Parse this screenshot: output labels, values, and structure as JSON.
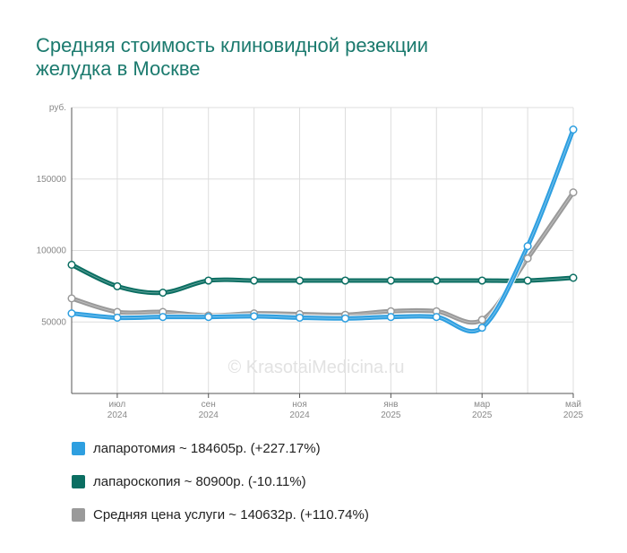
{
  "title": {
    "line1": "Средняя стоимость клиновидной резекции",
    "line2": "желудка в Москве"
  },
  "watermark": "© KrasotaiMedicina.ru",
  "chart_data": {
    "type": "line",
    "ylabel": "руб.",
    "ylim": [
      0,
      200000
    ],
    "yticks": [
      {
        "value": 50000,
        "label": "50000"
      },
      {
        "value": 100000,
        "label": "100000"
      },
      {
        "value": 150000,
        "label": "150000"
      }
    ],
    "x_points": 12,
    "x_ticks": [
      {
        "index": 1,
        "month": "июл",
        "year": "2024"
      },
      {
        "index": 3,
        "month": "сен",
        "year": "2024"
      },
      {
        "index": 5,
        "month": "ноя",
        "year": "2024"
      },
      {
        "index": 7,
        "month": "янв",
        "year": "2025"
      },
      {
        "index": 9,
        "month": "мар",
        "year": "2025"
      },
      {
        "index": 11,
        "month": "май",
        "year": "2025"
      }
    ],
    "grid": true,
    "series": [
      {
        "name": "лапаротомия",
        "color": "#2e9fe0",
        "values": [
          56000,
          53000,
          53500,
          53500,
          54000,
          53000,
          52500,
          53500,
          53500,
          46000,
          103000,
          184605
        ]
      },
      {
        "name": "лапароскопия",
        "color": "#0b6e62",
        "values": [
          90000,
          75000,
          70500,
          79000,
          79000,
          79000,
          79000,
          79000,
          79000,
          79000,
          79000,
          80900
        ]
      },
      {
        "name": "Средняя цена услуги",
        "color": "#9a9a9a",
        "values": [
          66500,
          57000,
          57000,
          54500,
          56000,
          55500,
          55000,
          57500,
          57500,
          51500,
          94500,
          140632
        ]
      }
    ]
  },
  "legend": [
    {
      "text": "лапаротомия ~ 184605р. (+227.17%)",
      "color": "#2e9fe0"
    },
    {
      "text": "лапароскопия ~ 80900р. (-10.11%)",
      "color": "#0b6e62"
    },
    {
      "text": "Средняя цена услуги ~ 140632р. (+110.74%)",
      "color": "#9a9a9a"
    }
  ]
}
